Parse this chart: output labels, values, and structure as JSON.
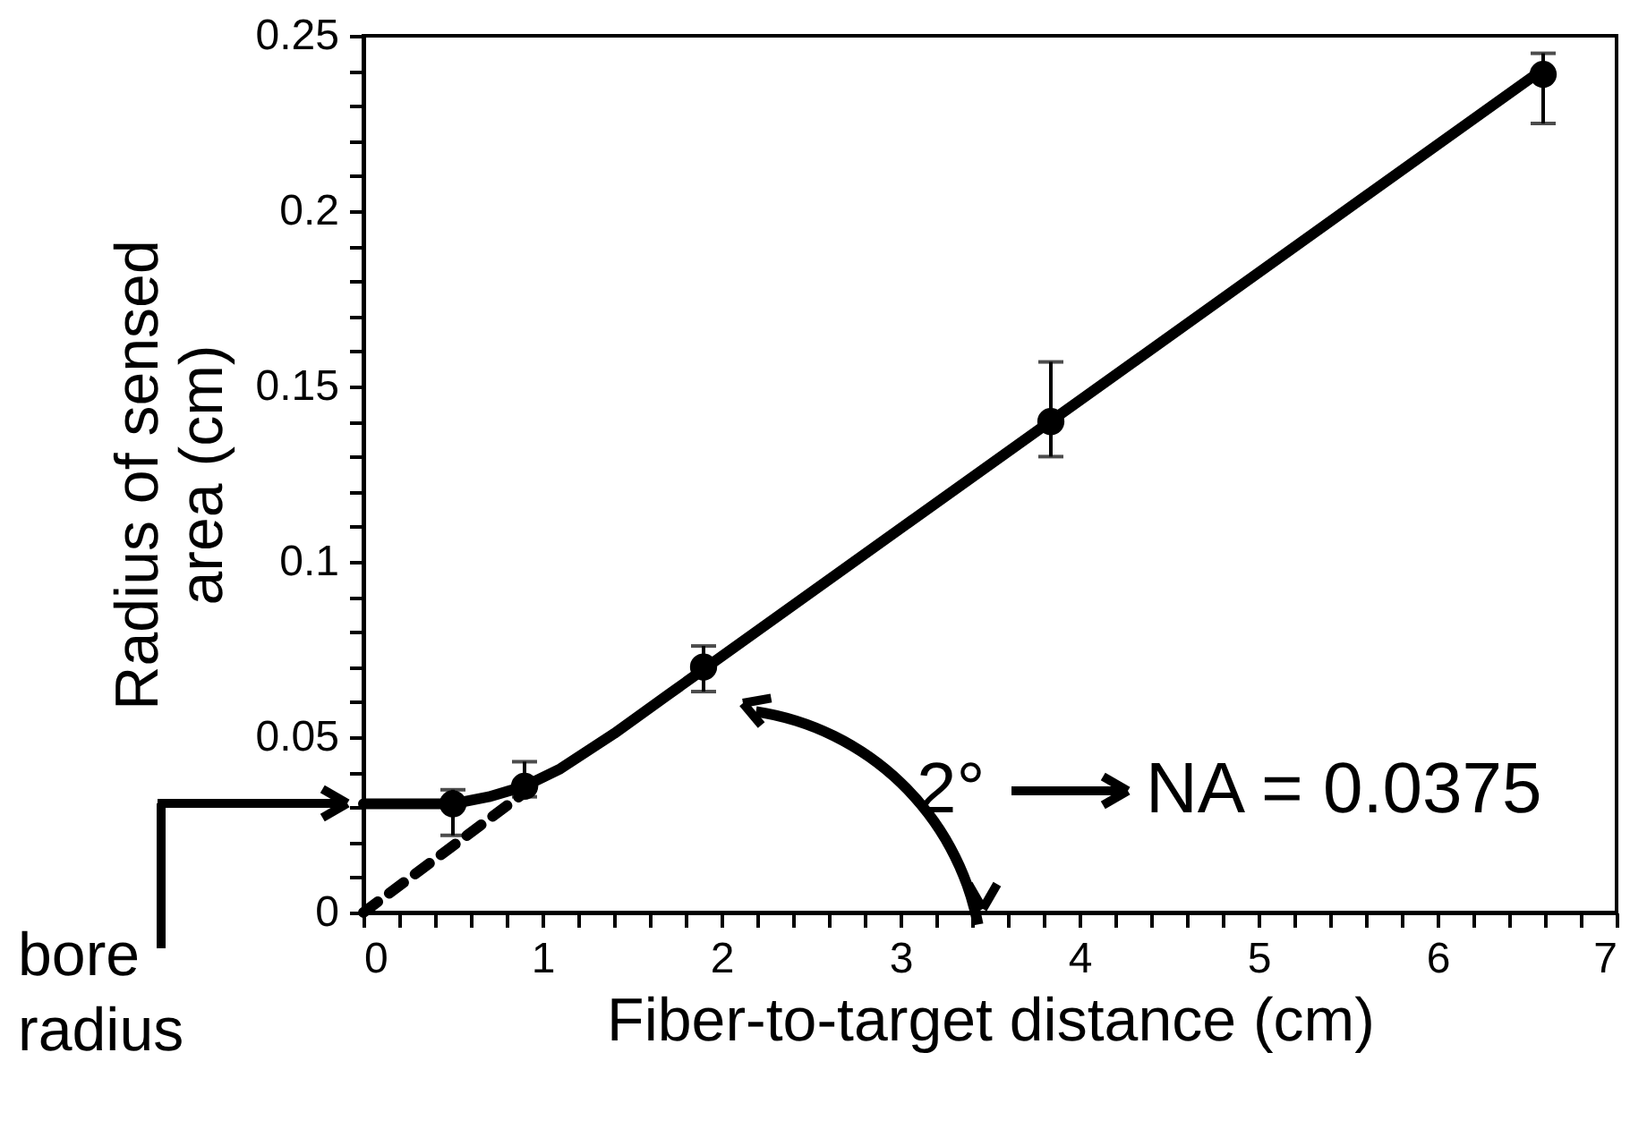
{
  "chart_data": {
    "type": "scatter",
    "xlabel": "Fiber-to-target distance (cm)",
    "ylabel": "Radius of sensed area (cm)",
    "xlim": [
      0,
      7
    ],
    "ylim": [
      0,
      0.25
    ],
    "xticks": [
      0,
      {
        "value": 0.2,
        "label": null
      },
      {
        "value": 0.4,
        "label": null
      },
      {
        "value": 0.6,
        "label": null
      },
      {
        "value": 0.8,
        "label": null
      },
      1,
      {
        "value": 1.2,
        "label": null
      },
      {
        "value": 1.4,
        "label": null
      },
      {
        "value": 1.6,
        "label": null
      },
      {
        "value": 1.8,
        "label": null
      },
      2,
      {
        "value": 2.2,
        "label": null
      },
      {
        "value": 2.4,
        "label": null
      },
      {
        "value": 2.6,
        "label": null
      },
      {
        "value": 2.8,
        "label": null
      },
      3,
      {
        "value": 3.2,
        "label": null
      },
      {
        "value": 3.4,
        "label": null
      },
      {
        "value": 3.6,
        "label": null
      },
      {
        "value": 3.8,
        "label": null
      },
      4,
      {
        "value": 4.2,
        "label": null
      },
      {
        "value": 4.4,
        "label": null
      },
      {
        "value": 4.6,
        "label": null
      },
      {
        "value": 4.8,
        "label": null
      },
      5,
      {
        "value": 5.2,
        "label": null
      },
      {
        "value": 5.4,
        "label": null
      },
      {
        "value": 5.6,
        "label": null
      },
      {
        "value": 5.8,
        "label": null
      },
      6,
      {
        "value": 6.2,
        "label": null
      },
      {
        "value": 6.4,
        "label": null
      },
      {
        "value": 6.6,
        "label": null
      },
      {
        "value": 6.8,
        "label": null
      },
      7
    ],
    "yticks": [
      0,
      {
        "value": 0.01,
        "label": null
      },
      {
        "value": 0.02,
        "label": null
      },
      {
        "value": 0.03,
        "label": null
      },
      {
        "value": 0.04,
        "label": null
      },
      0.05,
      {
        "value": 0.06,
        "label": null
      },
      {
        "value": 0.07,
        "label": null
      },
      {
        "value": 0.08,
        "label": null
      },
      {
        "value": 0.09,
        "label": null
      },
      0.1,
      {
        "value": 0.11,
        "label": null
      },
      {
        "value": 0.12,
        "label": null
      },
      {
        "value": 0.13,
        "label": null
      },
      {
        "value": 0.14,
        "label": null
      },
      0.15,
      {
        "value": 0.16,
        "label": null
      },
      {
        "value": 0.17,
        "label": null
      },
      {
        "value": 0.18,
        "label": null
      },
      {
        "value": 0.19,
        "label": null
      },
      0.2,
      {
        "value": 0.21,
        "label": null
      },
      {
        "value": 0.22,
        "label": null
      },
      {
        "value": 0.23,
        "label": null
      },
      {
        "value": 0.24,
        "label": null
      },
      0.25
    ],
    "grid": false,
    "series": [
      {
        "type": "line",
        "color": "#000000",
        "line_style": "solid",
        "marker": "none",
        "x": [
          0,
          0.5,
          0.7,
          0.9,
          1.1,
          1.4,
          1.7,
          2.0,
          6.55
        ],
        "values": [
          0.031,
          0.031,
          0.033,
          0.036,
          0.041,
          0.051,
          0.062,
          0.073,
          0.239
        ]
      },
      {
        "type": "line",
        "color": "#000000",
        "line_style": "dashed",
        "marker": "none",
        "x": [
          0,
          1.0
        ],
        "values": [
          0,
          0.038
        ]
      },
      {
        "type": "scatter",
        "color": "#000000",
        "marker": "circle",
        "x": [
          0.5,
          0.9,
          1.9,
          3.84,
          6.59
        ],
        "values": [
          0.031,
          0.036,
          0.07,
          0.14,
          0.239
        ],
        "errors": [
          [
            0.022,
            0.035
          ],
          [
            0.033,
            0.043
          ],
          [
            0.063,
            0.076
          ],
          [
            0.13,
            0.157
          ],
          [
            0.225,
            0.245
          ]
        ]
      }
    ],
    "annotations": [
      "2°",
      "NA = 0.0375",
      "bore radius"
    ]
  }
}
